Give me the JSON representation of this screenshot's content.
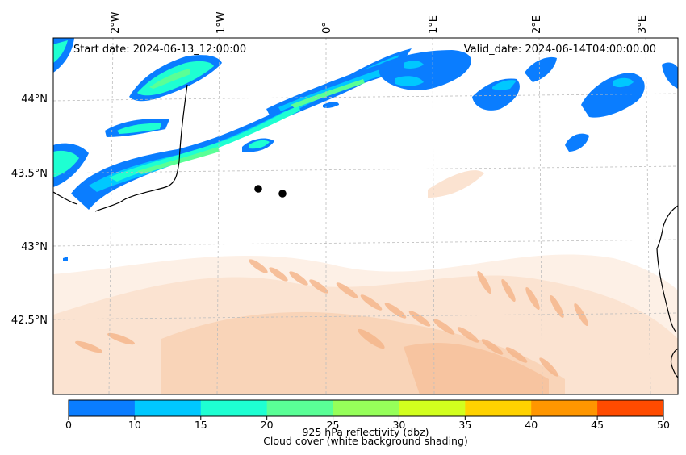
{
  "header": {
    "start_date": "Start date: 2024-06-13_12:00:00",
    "valid_date": "Valid_date: 2024-06-14T04:00:00.00"
  },
  "axes": {
    "lon_labels": [
      "2°W",
      "1°W",
      "0°",
      "1°E",
      "2°E",
      "3°E"
    ],
    "lat_labels": [
      "44°N",
      "43.5°N",
      "43°N",
      "42.5°N"
    ]
  },
  "colorbar": {
    "ticks": [
      "0",
      "10",
      "15",
      "20",
      "25",
      "30",
      "35",
      "40",
      "45",
      "50"
    ],
    "colors": [
      "#0a7dff",
      "#00c8ff",
      "#1effd2",
      "#5aff96",
      "#96ff5a",
      "#d2ff1e",
      "#ffd200",
      "#ff9600",
      "#ff4b00"
    ],
    "label_1": "925 hPa reflectivity (dbz)",
    "label_2": "Cloud cover (white background shading)"
  },
  "markers": [
    {
      "name": "point-1"
    },
    {
      "name": "point-2"
    }
  ]
}
